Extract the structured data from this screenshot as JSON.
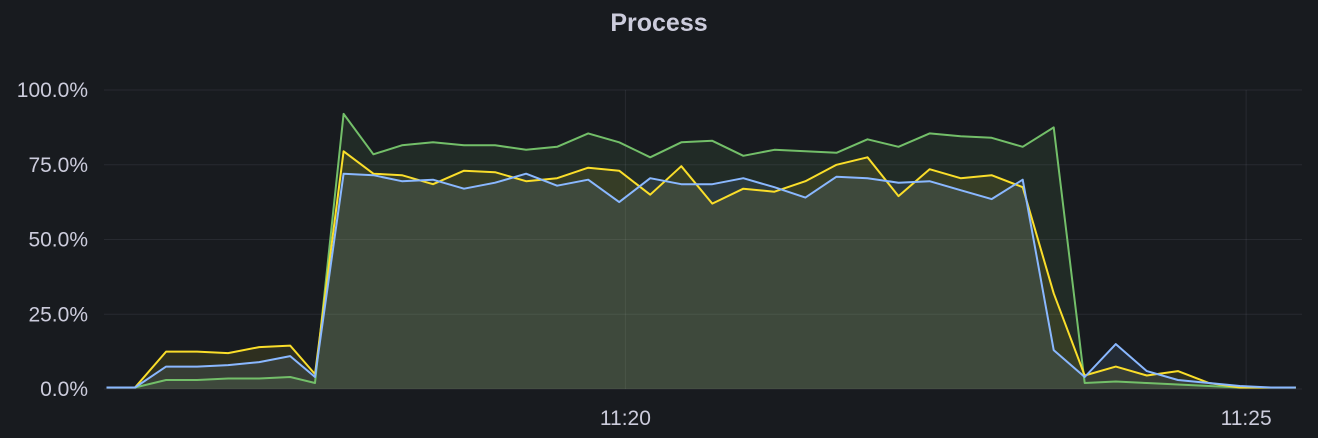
{
  "panel": {
    "title": "Process"
  },
  "chart_data": {
    "type": "area",
    "title": "Process",
    "xlabel": "",
    "ylabel": "",
    "y_ticks": [
      "0.0%",
      "25.0%",
      "50.0%",
      "75.0%",
      "100.0%"
    ],
    "y_tick_values": [
      0,
      25,
      50,
      75,
      100
    ],
    "ylim": [
      0,
      100
    ],
    "x_ticks": [
      "11:20",
      "11:25"
    ],
    "x_tick_values": [
      20,
      25
    ],
    "xlim": [
      15.8,
      25.45
    ],
    "grid": true,
    "x": [
      15.82,
      16.05,
      16.3,
      16.55,
      16.8,
      17.05,
      17.3,
      17.5,
      17.73,
      17.97,
      18.2,
      18.45,
      18.7,
      18.95,
      19.2,
      19.45,
      19.7,
      19.95,
      20.2,
      20.45,
      20.7,
      20.95,
      21.2,
      21.45,
      21.7,
      21.95,
      22.2,
      22.45,
      22.7,
      22.95,
      23.2,
      23.45,
      23.7,
      23.95,
      24.2,
      24.45,
      24.7,
      24.95,
      25.2,
      25.4
    ],
    "series": [
      {
        "color": "#73bf69",
        "values": [
          0.5,
          0.5,
          3,
          3,
          3.5,
          3.5,
          4,
          2,
          92,
          78.5,
          81.5,
          82.5,
          81.5,
          81.5,
          80,
          81,
          85.5,
          82.5,
          77.5,
          82.5,
          83,
          78,
          80,
          79.5,
          79,
          83.5,
          81,
          85.5,
          84.5,
          84,
          81,
          87.5,
          2,
          2.5,
          2,
          1.5,
          1,
          0.5,
          0.5,
          0.5
        ]
      },
      {
        "color": "#fade2a",
        "values": [
          0.5,
          0.5,
          12.5,
          12.5,
          12,
          14,
          14.5,
          5,
          79.5,
          72,
          71.5,
          68.5,
          73,
          72.5,
          69.5,
          70.5,
          74,
          73,
          65,
          74.5,
          62,
          67,
          66,
          69.5,
          75,
          77.5,
          64.5,
          73.5,
          70.5,
          71.5,
          67.5,
          32,
          4.5,
          7.5,
          4.5,
          6,
          2,
          0.5,
          0.5,
          0.5
        ]
      },
      {
        "color": "#8ab8ff",
        "values": [
          0.5,
          0.5,
          7.5,
          7.5,
          8,
          9,
          11,
          4,
          72,
          71.5,
          69.5,
          70,
          67,
          69,
          72,
          68,
          70,
          62.5,
          70.5,
          68.5,
          68.5,
          70.5,
          67.5,
          64,
          71,
          70.5,
          69,
          69.5,
          66.5,
          63.5,
          70,
          13,
          4,
          15,
          6,
          3,
          2,
          1,
          0.5,
          0.5
        ]
      }
    ]
  }
}
